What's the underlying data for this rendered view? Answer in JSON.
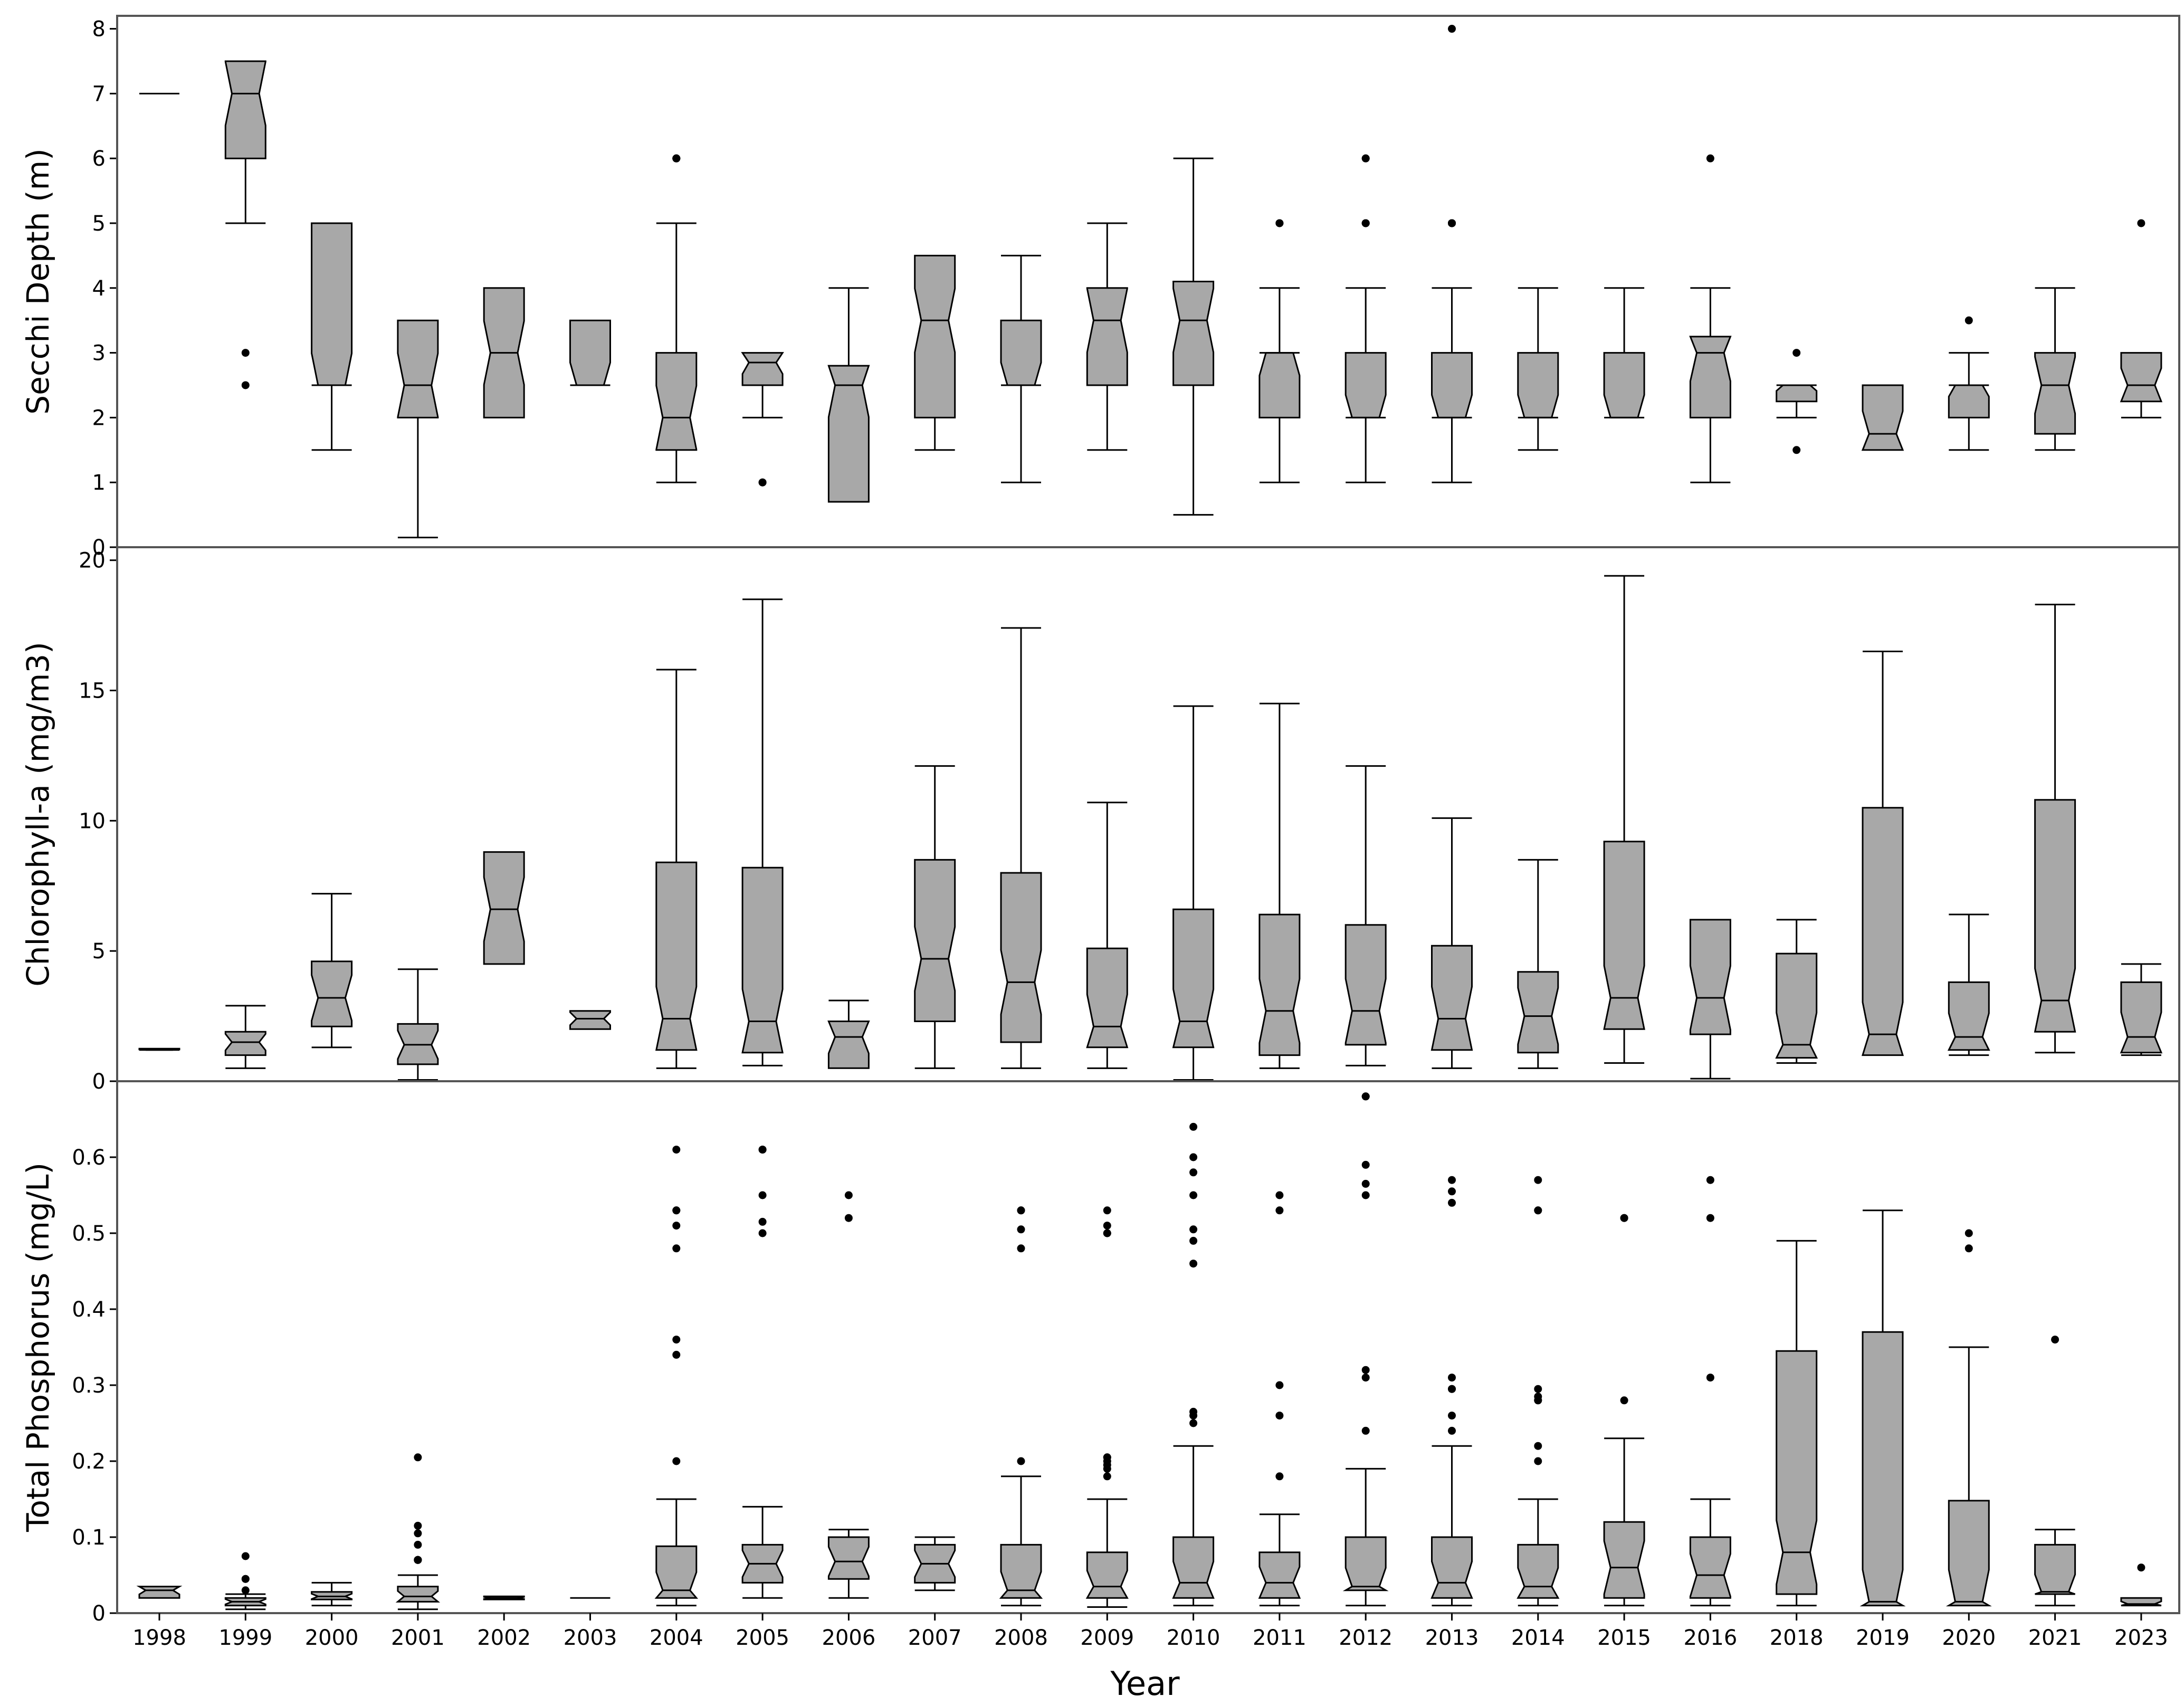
{
  "chart_data": [
    {
      "type": "boxplot",
      "ylabel": "Secchi Depth (m)",
      "ylim": [
        0,
        8.2
      ],
      "yticks": [
        0,
        1,
        2,
        3,
        4,
        5,
        6,
        7,
        8
      ],
      "series": [
        {
          "year": "1998",
          "q1": 7,
          "median": 7,
          "q3": 7,
          "lo": 7,
          "hi": 7,
          "outliers": []
        },
        {
          "year": "1999",
          "q1": 6,
          "median": 7,
          "q3": 7.5,
          "lo": 5,
          "hi": 7.5,
          "outliers": [
            3,
            2.5
          ]
        },
        {
          "year": "2000",
          "q1": 2.5,
          "median": 2.5,
          "q3": 5,
          "lo": 1.5,
          "hi": 5,
          "outliers": []
        },
        {
          "year": "2001",
          "q1": 2,
          "median": 2.5,
          "q3": 3.5,
          "lo": 0.15,
          "hi": 3.5,
          "outliers": []
        },
        {
          "year": "2002",
          "q1": 2,
          "median": 3,
          "q3": 4,
          "lo": 2,
          "hi": 4,
          "outliers": []
        },
        {
          "year": "2003",
          "q1": 2.5,
          "median": 2.5,
          "q3": 3.5,
          "lo": 2.5,
          "hi": 3.5,
          "outliers": []
        },
        {
          "year": "2004",
          "q1": 1.5,
          "median": 2,
          "q3": 3,
          "lo": 1,
          "hi": 5,
          "outliers": [
            6,
            6,
            6,
            6
          ]
        },
        {
          "year": "2005",
          "q1": 2.5,
          "median": 2.85,
          "q3": 3,
          "lo": 2,
          "hi": 3,
          "outliers": [
            1,
            1
          ]
        },
        {
          "year": "2006",
          "q1": 0.7,
          "median": 2.5,
          "q3": 2.8,
          "lo": 0.7,
          "hi": 4,
          "outliers": []
        },
        {
          "year": "2007",
          "q1": 2,
          "median": 3.5,
          "q3": 4.5,
          "lo": 1.5,
          "hi": 4.5,
          "outliers": []
        },
        {
          "year": "2008",
          "q1": 2.5,
          "median": 2.5,
          "q3": 3.5,
          "lo": 1,
          "hi": 4.5,
          "outliers": []
        },
        {
          "year": "2009",
          "q1": 2.5,
          "median": 3.5,
          "q3": 4,
          "lo": 1.5,
          "hi": 5,
          "outliers": []
        },
        {
          "year": "2010",
          "q1": 2.5,
          "median": 3.5,
          "q3": 4.1,
          "lo": 0.5,
          "hi": 6,
          "outliers": []
        },
        {
          "year": "2011",
          "q1": 2,
          "median": 3,
          "q3": 3,
          "lo": 1,
          "hi": 4,
          "outliers": [
            5,
            5
          ]
        },
        {
          "year": "2012",
          "q1": 2,
          "median": 2,
          "q3": 3,
          "lo": 1,
          "hi": 4,
          "outliers": [
            6,
            6,
            5,
            5,
            5
          ]
        },
        {
          "year": "2013",
          "q1": 2,
          "median": 2,
          "q3": 3,
          "lo": 1,
          "hi": 4,
          "outliers": [
            8,
            5,
            5,
            5,
            5
          ]
        },
        {
          "year": "2014",
          "q1": 2,
          "median": 2,
          "q3": 3,
          "lo": 1.5,
          "hi": 4,
          "outliers": []
        },
        {
          "year": "2015",
          "q1": 2,
          "median": 2,
          "q3": 3,
          "lo": 2,
          "hi": 4,
          "outliers": []
        },
        {
          "year": "2016",
          "q1": 2,
          "median": 3,
          "q3": 3.25,
          "lo": 1,
          "hi": 4,
          "outliers": [
            6
          ]
        },
        {
          "year": "2018",
          "q1": 2.25,
          "median": 2.5,
          "q3": 2.5,
          "lo": 2,
          "hi": 2.5,
          "outliers": [
            3,
            1.5
          ]
        },
        {
          "year": "2019",
          "q1": 1.5,
          "median": 1.75,
          "q3": 2.5,
          "lo": 1.5,
          "hi": 2.5,
          "outliers": []
        },
        {
          "year": "2020",
          "q1": 2,
          "median": 2.5,
          "q3": 2.5,
          "lo": 1.5,
          "hi": 3,
          "outliers": [
            3.5
          ]
        },
        {
          "year": "2021",
          "q1": 1.75,
          "median": 2.5,
          "q3": 3,
          "lo": 1.5,
          "hi": 4,
          "outliers": []
        },
        {
          "year": "2023",
          "q1": 2.25,
          "median": 2.5,
          "q3": 3,
          "lo": 2,
          "hi": 3,
          "outliers": [
            5
          ]
        }
      ]
    },
    {
      "type": "boxplot",
      "ylabel": "Chlorophyll-a  (mg/m3)",
      "ylim": [
        0,
        20.5
      ],
      "yticks": [
        0,
        5,
        10,
        15,
        20
      ],
      "series": [
        {
          "year": "1998",
          "q1": 1.2,
          "median": 1.2,
          "q3": 1.25,
          "lo": 1.2,
          "hi": 1.25,
          "outliers": []
        },
        {
          "year": "1999",
          "q1": 1.0,
          "median": 1.5,
          "q3": 1.9,
          "lo": 0.5,
          "hi": 2.9,
          "outliers": []
        },
        {
          "year": "2000",
          "q1": 2.1,
          "median": 3.2,
          "q3": 4.6,
          "lo": 1.3,
          "hi": 7.2,
          "outliers": []
        },
        {
          "year": "2001",
          "q1": 0.65,
          "median": 1.4,
          "q3": 2.2,
          "lo": 0.05,
          "hi": 4.3,
          "outliers": []
        },
        {
          "year": "2002",
          "q1": 4.5,
          "median": 6.6,
          "q3": 8.8,
          "lo": 4.5,
          "hi": 8.8,
          "outliers": []
        },
        {
          "year": "2003",
          "q1": 2.0,
          "median": 2.4,
          "q3": 2.7,
          "lo": 2.0,
          "hi": 2.7,
          "outliers": []
        },
        {
          "year": "2004",
          "q1": 1.2,
          "median": 2.4,
          "q3": 8.4,
          "lo": 0.5,
          "hi": 15.8,
          "outliers": []
        },
        {
          "year": "2005",
          "q1": 1.1,
          "median": 2.3,
          "q3": 8.2,
          "lo": 0.6,
          "hi": 18.5,
          "outliers": []
        },
        {
          "year": "2006",
          "q1": 0.5,
          "median": 1.7,
          "q3": 2.3,
          "lo": 0.5,
          "hi": 3.1,
          "outliers": []
        },
        {
          "year": "2007",
          "q1": 2.3,
          "median": 4.7,
          "q3": 8.5,
          "lo": 0.5,
          "hi": 12.1,
          "outliers": []
        },
        {
          "year": "2008",
          "q1": 1.5,
          "median": 3.8,
          "q3": 8.0,
          "lo": 0.5,
          "hi": 17.4,
          "outliers": []
        },
        {
          "year": "2009",
          "q1": 1.3,
          "median": 2.1,
          "q3": 5.1,
          "lo": 0.5,
          "hi": 10.7,
          "outliers": []
        },
        {
          "year": "2010",
          "q1": 1.3,
          "median": 2.3,
          "q3": 6.6,
          "lo": 0.05,
          "hi": 14.4,
          "outliers": []
        },
        {
          "year": "2011",
          "q1": 1.0,
          "median": 2.7,
          "q3": 6.4,
          "lo": 0.5,
          "hi": 14.5,
          "outliers": []
        },
        {
          "year": "2012",
          "q1": 1.4,
          "median": 2.7,
          "q3": 6.0,
          "lo": 0.6,
          "hi": 12.1,
          "outliers": []
        },
        {
          "year": "2013",
          "q1": 1.2,
          "median": 2.4,
          "q3": 5.2,
          "lo": 0.5,
          "hi": 10.1,
          "outliers": []
        },
        {
          "year": "2014",
          "q1": 1.1,
          "median": 2.5,
          "q3": 4.2,
          "lo": 0.5,
          "hi": 8.5,
          "outliers": []
        },
        {
          "year": "2015",
          "q1": 2.0,
          "median": 3.2,
          "q3": 9.2,
          "lo": 0.7,
          "hi": 19.4,
          "outliers": []
        },
        {
          "year": "2016",
          "q1": 1.8,
          "median": 3.2,
          "q3": 6.2,
          "lo": 0.1,
          "hi": 6.2,
          "outliers": []
        },
        {
          "year": "2018",
          "q1": 0.9,
          "median": 1.4,
          "q3": 4.9,
          "lo": 0.7,
          "hi": 6.2,
          "outliers": []
        },
        {
          "year": "2019",
          "q1": 1.0,
          "median": 1.8,
          "q3": 10.5,
          "lo": 1.0,
          "hi": 16.5,
          "outliers": []
        },
        {
          "year": "2020",
          "q1": 1.2,
          "median": 1.7,
          "q3": 3.8,
          "lo": 1.0,
          "hi": 6.4,
          "outliers": []
        },
        {
          "year": "2021",
          "q1": 1.9,
          "median": 3.1,
          "q3": 10.8,
          "lo": 1.1,
          "hi": 18.3,
          "outliers": []
        },
        {
          "year": "2023",
          "q1": 1.1,
          "median": 1.7,
          "q3": 3.8,
          "lo": 1.0,
          "hi": 4.5,
          "outliers": []
        }
      ]
    },
    {
      "type": "boxplot",
      "ylabel": "Total Phosphorus (mg/L)",
      "xlabel": "Year",
      "ylim": [
        0,
        0.7
      ],
      "yticks": [
        0,
        0.1,
        0.2,
        0.3,
        0.4,
        0.5,
        0.6
      ],
      "ytick_labels": [
        "0",
        "0.1",
        "0.2",
        "0.3",
        "0.4",
        "0.5",
        "0.6"
      ],
      "series": [
        {
          "year": "1998",
          "q1": 0.02,
          "median": 0.03,
          "q3": 0.035,
          "lo": 0.02,
          "hi": 0.035,
          "outliers": []
        },
        {
          "year": "1999",
          "q1": 0.01,
          "median": 0.015,
          "q3": 0.02,
          "lo": 0.005,
          "hi": 0.025,
          "outliers": [
            0.075,
            0.045,
            0.045,
            0.03
          ]
        },
        {
          "year": "2000",
          "q1": 0.018,
          "median": 0.022,
          "q3": 0.028,
          "lo": 0.01,
          "hi": 0.04,
          "outliers": []
        },
        {
          "year": "2001",
          "q1": 0.015,
          "median": 0.022,
          "q3": 0.035,
          "lo": 0.005,
          "hi": 0.05,
          "outliers": [
            0.205,
            0.115,
            0.105,
            0.09,
            0.07,
            0.07,
            0.07,
            0.07,
            0.07,
            0.07
          ]
        },
        {
          "year": "2002",
          "q1": 0.018,
          "median": 0.02,
          "q3": 0.022,
          "lo": 0.018,
          "hi": 0.022,
          "outliers": []
        },
        {
          "year": "2003",
          "q1": 0.02,
          "median": 0.02,
          "q3": 0.02,
          "lo": 0.02,
          "hi": 0.02,
          "outliers": []
        },
        {
          "year": "2004",
          "q1": 0.02,
          "median": 0.03,
          "q3": 0.088,
          "lo": 0.01,
          "hi": 0.15,
          "outliers": [
            0.61,
            0.53,
            0.53,
            0.51,
            0.48,
            0.36,
            0.34,
            0.2
          ]
        },
        {
          "year": "2005",
          "q1": 0.04,
          "median": 0.065,
          "q3": 0.09,
          "lo": 0.02,
          "hi": 0.14,
          "outliers": [
            0.61,
            0.61,
            0.55,
            0.515,
            0.5
          ]
        },
        {
          "year": "2006",
          "q1": 0.045,
          "median": 0.068,
          "q3": 0.1,
          "lo": 0.02,
          "hi": 0.11,
          "outliers": [
            0.55,
            0.52
          ]
        },
        {
          "year": "2007",
          "q1": 0.04,
          "median": 0.065,
          "q3": 0.09,
          "lo": 0.03,
          "hi": 0.1,
          "outliers": []
        },
        {
          "year": "2008",
          "q1": 0.02,
          "median": 0.03,
          "q3": 0.09,
          "lo": 0.01,
          "hi": 0.18,
          "outliers": [
            0.53,
            0.53,
            0.505,
            0.48,
            0.2
          ]
        },
        {
          "year": "2009",
          "q1": 0.02,
          "median": 0.035,
          "q3": 0.08,
          "lo": 0.008,
          "hi": 0.15,
          "outliers": [
            0.53,
            0.51,
            0.5,
            0.5,
            0.205,
            0.205,
            0.2,
            0.195,
            0.19,
            0.18
          ]
        },
        {
          "year": "2010",
          "q1": 0.02,
          "median": 0.04,
          "q3": 0.1,
          "lo": 0.01,
          "hi": 0.22,
          "outliers": [
            0.64,
            0.6,
            0.58,
            0.55,
            0.505,
            0.49,
            0.46,
            0.265,
            0.26,
            0.25
          ]
        },
        {
          "year": "2011",
          "q1": 0.02,
          "median": 0.04,
          "q3": 0.08,
          "lo": 0.01,
          "hi": 0.13,
          "outliers": [
            0.55,
            0.53,
            0.3,
            0.26,
            0.18
          ]
        },
        {
          "year": "2012",
          "q1": 0.03,
          "median": 0.035,
          "q3": 0.1,
          "lo": 0.01,
          "hi": 0.19,
          "outliers": [
            0.68,
            0.68,
            0.59,
            0.565,
            0.55,
            0.32,
            0.31,
            0.24
          ]
        },
        {
          "year": "2013",
          "q1": 0.02,
          "median": 0.04,
          "q3": 0.1,
          "lo": 0.01,
          "hi": 0.22,
          "outliers": [
            0.57,
            0.555,
            0.54,
            0.31,
            0.295,
            0.295,
            0.26,
            0.24
          ]
        },
        {
          "year": "2014",
          "q1": 0.02,
          "median": 0.035,
          "q3": 0.09,
          "lo": 0.01,
          "hi": 0.15,
          "outliers": [
            0.57,
            0.53,
            0.53,
            0.295,
            0.285,
            0.28,
            0.28,
            0.22,
            0.2
          ]
        },
        {
          "year": "2015",
          "q1": 0.02,
          "median": 0.06,
          "q3": 0.12,
          "lo": 0.01,
          "hi": 0.23,
          "outliers": [
            0.52,
            0.52,
            0.28
          ]
        },
        {
          "year": "2016",
          "q1": 0.02,
          "median": 0.05,
          "q3": 0.1,
          "lo": 0.01,
          "hi": 0.15,
          "outliers": [
            0.57,
            0.52,
            0.31
          ]
        },
        {
          "year": "2018",
          "q1": 0.025,
          "median": 0.08,
          "q3": 0.345,
          "lo": 0.01,
          "hi": 0.49,
          "outliers": []
        },
        {
          "year": "2019",
          "q1": 0.01,
          "median": 0.015,
          "q3": 0.37,
          "lo": 0.01,
          "hi": 0.53,
          "outliers": []
        },
        {
          "year": "2020",
          "q1": 0.01,
          "median": 0.015,
          "q3": 0.148,
          "lo": 0.01,
          "hi": 0.35,
          "outliers": [
            0.5,
            0.48
          ]
        },
        {
          "year": "2021",
          "q1": 0.025,
          "median": 0.028,
          "q3": 0.09,
          "lo": 0.01,
          "hi": 0.11,
          "outliers": [
            0.36
          ]
        },
        {
          "year": "2023",
          "q1": 0.01,
          "median": 0.012,
          "q3": 0.02,
          "lo": 0.01,
          "hi": 0.02,
          "outliers": [
            0.06
          ]
        }
      ]
    }
  ]
}
